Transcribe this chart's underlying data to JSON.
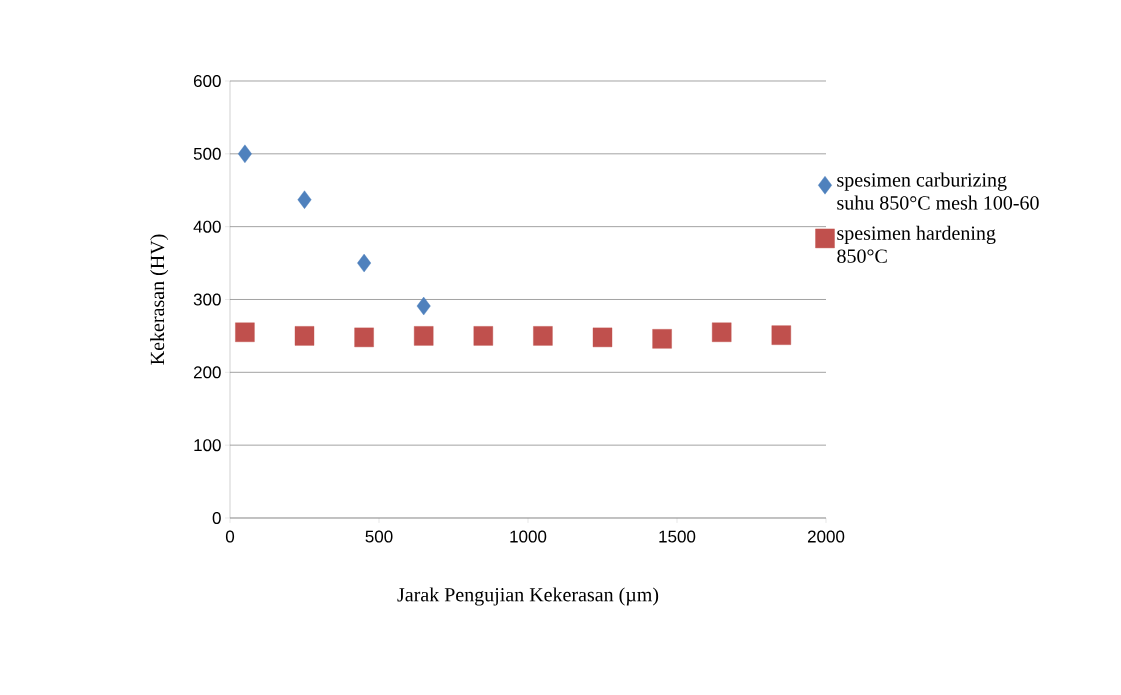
{
  "chart_data": {
    "type": "scatter",
    "xlabel": "Jarak Pengujian Kekerasan (µm)",
    "ylabel": "Kekerasan (HV)",
    "x": [
      50,
      250,
      450,
      650,
      850,
      1050,
      1250,
      1450,
      1650,
      1850
    ],
    "series": [
      {
        "name": "spesimen carburizing suhu 850°C mesh 100-60",
        "color": "#4f81bd",
        "marker": "diamond",
        "values": [
          500,
          437,
          350,
          291,
          null,
          null,
          null,
          null,
          null,
          null
        ]
      },
      {
        "name": "spesimen hardening 850°C",
        "color": "#c0504d",
        "marker": "square",
        "values": [
          255,
          250,
          248,
          250,
          250,
          250,
          248,
          246,
          255,
          251
        ]
      }
    ],
    "xlim": [
      0,
      2000
    ],
    "xticks": [
      0,
      500,
      1000,
      1500,
      2000
    ],
    "ylim": [
      0,
      600
    ],
    "yticks": [
      0,
      100,
      200,
      300,
      400,
      500,
      600
    ],
    "grid": "y",
    "legend": "right"
  }
}
